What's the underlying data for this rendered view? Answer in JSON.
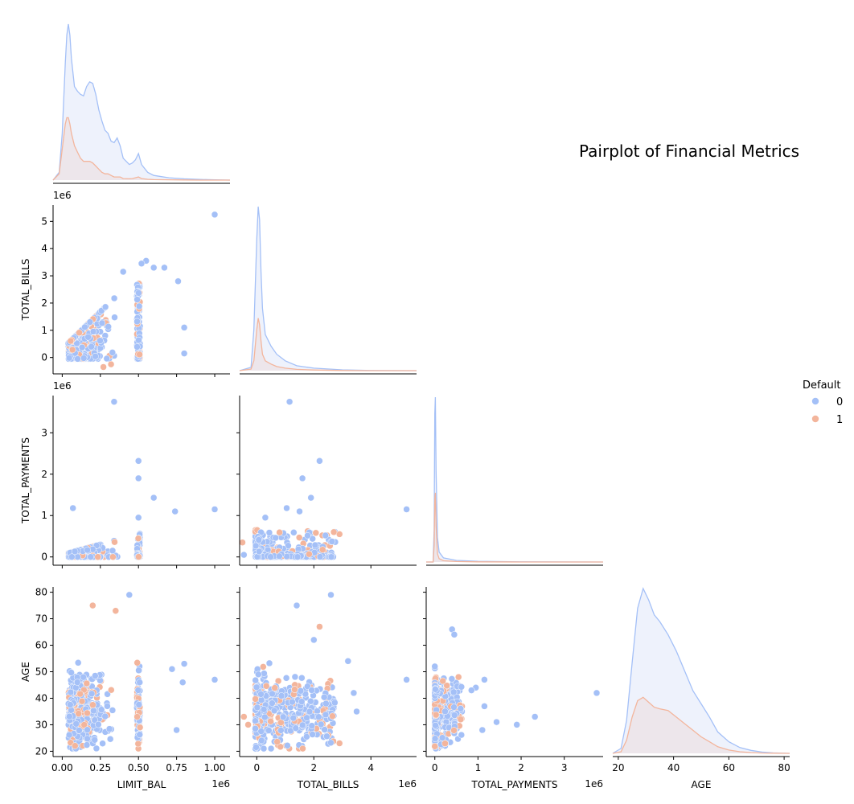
{
  "chart_data": {
    "type": "scatter",
    "title": "Pairplot of Financial Metrics",
    "variables": [
      "LIMIT_BAL",
      "TOTAL_BILLS",
      "TOTAL_PAYMENTS",
      "AGE"
    ],
    "offset_labels": {
      "LIMIT_BAL": "1e6",
      "TOTAL_BILLS": "1e6",
      "TOTAL_PAYMENTS": "1e6",
      "AGE": ""
    },
    "axes": {
      "LIMIT_BAL": {
        "lim": [
          -0.06,
          1.1
        ],
        "ticks": [
          0.0,
          0.25,
          0.5,
          0.75,
          1.0
        ],
        "tick_labels": [
          "0.00",
          "0.25",
          "0.50",
          "0.75",
          "1.00"
        ]
      },
      "TOTAL_BILLS": {
        "lim": [
          -0.6,
          5.6
        ],
        "ticks": [
          0,
          1,
          2,
          3,
          4,
          5
        ],
        "tick_labels": [
          "0",
          "1",
          "2",
          "3",
          "4",
          "5"
        ],
        "x_ticks": [
          0,
          2,
          4
        ],
        "x_tick_labels": [
          "0",
          "2",
          "4"
        ]
      },
      "TOTAL_PAYMENTS": {
        "lim": [
          -0.2,
          3.9
        ],
        "ticks": [
          0,
          1,
          2,
          3
        ],
        "tick_labels": [
          "0",
          "1",
          "2",
          "3"
        ]
      },
      "AGE": {
        "lim": [
          18,
          82
        ],
        "ticks": [
          20,
          30,
          40,
          50,
          60,
          70,
          80
        ],
        "tick_labels": [
          "20",
          "30",
          "40",
          "50",
          "60",
          "70",
          "80"
        ],
        "x_ticks": [
          20,
          40,
          60,
          80
        ],
        "x_tick_labels": [
          "20",
          "40",
          "60",
          "80"
        ]
      }
    },
    "legend": {
      "title": "Default",
      "placement": "right",
      "entries": [
        {
          "label": "0",
          "color": "#a4c0f7"
        },
        {
          "label": "1",
          "color": "#f3b59c"
        }
      ]
    },
    "colors": {
      "0": "#a4c0f7",
      "1": "#f3b59c",
      "kde_fill_0": "#e8eefb",
      "kde_fill_1": "#ece2e6",
      "kde_line_0": "#a4c0f7",
      "kde_line_1": "#f3b59c"
    },
    "diag_kde": {
      "LIMIT_BAL": {
        "x": [
          -0.06,
          -0.02,
          0.0,
          0.02,
          0.03,
          0.04,
          0.05,
          0.06,
          0.08,
          0.1,
          0.12,
          0.14,
          0.16,
          0.18,
          0.2,
          0.22,
          0.24,
          0.26,
          0.28,
          0.3,
          0.32,
          0.34,
          0.36,
          0.38,
          0.4,
          0.44,
          0.46,
          0.48,
          0.5,
          0.52,
          0.56,
          0.6,
          0.7,
          0.8,
          0.9,
          1.0,
          1.1
        ],
        "y0": [
          0.0,
          0.05,
          0.3,
          0.75,
          0.93,
          1.0,
          0.93,
          0.78,
          0.6,
          0.57,
          0.55,
          0.54,
          0.6,
          0.63,
          0.62,
          0.55,
          0.45,
          0.38,
          0.32,
          0.3,
          0.25,
          0.24,
          0.27,
          0.22,
          0.14,
          0.1,
          0.11,
          0.13,
          0.17,
          0.1,
          0.05,
          0.03,
          0.015,
          0.008,
          0.004,
          0.002,
          0.0
        ],
        "y1": [
          0.0,
          0.04,
          0.2,
          0.36,
          0.4,
          0.4,
          0.36,
          0.3,
          0.22,
          0.18,
          0.14,
          0.12,
          0.12,
          0.12,
          0.11,
          0.09,
          0.07,
          0.05,
          0.04,
          0.04,
          0.03,
          0.02,
          0.02,
          0.02,
          0.01,
          0.008,
          0.01,
          0.015,
          0.02,
          0.01,
          0.005,
          0.003,
          0.002,
          0.001,
          0.0,
          0.0,
          0.0
        ]
      },
      "TOTAL_BILLS": {
        "x": [
          -0.6,
          -0.2,
          -0.1,
          0.0,
          0.05,
          0.1,
          0.15,
          0.2,
          0.3,
          0.5,
          0.7,
          1.0,
          1.4,
          2.0,
          3.0,
          4.0,
          5.6
        ],
        "y0": [
          0.0,
          0.02,
          0.25,
          0.8,
          1.0,
          0.92,
          0.6,
          0.38,
          0.22,
          0.15,
          0.1,
          0.06,
          0.03,
          0.015,
          0.005,
          0.001,
          0.0
        ],
        "y1": [
          0.0,
          0.01,
          0.06,
          0.25,
          0.32,
          0.28,
          0.18,
          0.1,
          0.06,
          0.04,
          0.025,
          0.015,
          0.008,
          0.004,
          0.001,
          0.0,
          0.0
        ]
      },
      "TOTAL_PAYMENTS": {
        "x": [
          -0.2,
          -0.04,
          -0.015,
          0.0,
          0.012,
          0.03,
          0.06,
          0.1,
          0.2,
          0.5,
          1.0,
          2.0,
          3.9
        ],
        "y0": [
          0.0,
          0.0,
          0.2,
          0.9,
          1.0,
          0.55,
          0.15,
          0.06,
          0.025,
          0.01,
          0.004,
          0.001,
          0.0
        ],
        "y1": [
          0.0,
          0.0,
          0.1,
          0.38,
          0.42,
          0.22,
          0.05,
          0.02,
          0.008,
          0.003,
          0.001,
          0.0,
          0.0
        ]
      },
      "AGE": {
        "x": [
          18,
          21,
          23,
          25,
          27,
          29,
          31,
          33,
          35,
          38,
          41,
          44,
          47,
          50,
          53,
          56,
          60,
          64,
          68,
          72,
          76,
          82
        ],
        "y0": [
          0.0,
          0.03,
          0.2,
          0.55,
          0.88,
          1.0,
          0.93,
          0.84,
          0.8,
          0.72,
          0.62,
          0.5,
          0.38,
          0.3,
          0.22,
          0.13,
          0.07,
          0.035,
          0.018,
          0.008,
          0.003,
          0.0
        ],
        "y1": [
          0.0,
          0.01,
          0.08,
          0.22,
          0.32,
          0.34,
          0.31,
          0.28,
          0.27,
          0.26,
          0.22,
          0.18,
          0.14,
          0.1,
          0.07,
          0.04,
          0.02,
          0.01,
          0.005,
          0.002,
          0.001,
          0.0
        ]
      }
    },
    "outliers": {
      "TOTAL_BILLS_vs_LIMIT_BAL": [
        [
          1.0,
          5.25,
          0
        ],
        [
          0.55,
          3.55,
          0
        ],
        [
          0.52,
          3.45,
          0
        ],
        [
          0.6,
          3.3,
          0
        ],
        [
          0.67,
          3.3,
          0
        ],
        [
          0.4,
          3.15,
          0
        ],
        [
          0.76,
          2.8,
          0
        ],
        [
          0.8,
          1.1,
          0
        ],
        [
          0.8,
          0.15,
          0
        ],
        [
          0.27,
          -0.35,
          1
        ],
        [
          0.32,
          -0.25,
          1
        ]
      ],
      "TOTAL_PAYMENTS_vs_LIMIT_BAL": [
        [
          0.34,
          3.75,
          0
        ],
        [
          0.5,
          2.32,
          0
        ],
        [
          0.5,
          1.9,
          0
        ],
        [
          0.6,
          1.43,
          0
        ],
        [
          0.07,
          1.18,
          0
        ],
        [
          0.74,
          1.1,
          0
        ],
        [
          1.0,
          1.15,
          0
        ],
        [
          0.5,
          0.95,
          0
        ]
      ],
      "TOTAL_PAYMENTS_vs_TOTAL_BILLS": [
        [
          1.15,
          3.75,
          0
        ],
        [
          2.2,
          2.32,
          0
        ],
        [
          1.6,
          1.9,
          0
        ],
        [
          1.9,
          1.43,
          0
        ],
        [
          1.05,
          1.18,
          0
        ],
        [
          1.5,
          1.1,
          0
        ],
        [
          5.25,
          1.15,
          0
        ],
        [
          0.3,
          0.95,
          0
        ],
        [
          2.9,
          0.55,
          1
        ],
        [
          2.7,
          0.6,
          1
        ],
        [
          -0.5,
          0.35,
          1
        ],
        [
          -0.45,
          0.05,
          0
        ]
      ],
      "AGE_vs_LIMIT_BAL": [
        [
          0.44,
          79,
          0
        ],
        [
          1.0,
          47,
          0
        ],
        [
          0.8,
          53,
          0
        ],
        [
          0.79,
          46,
          0
        ],
        [
          0.75,
          28,
          0
        ],
        [
          0.72,
          51,
          0
        ],
        [
          0.2,
          75,
          1
        ],
        [
          0.35,
          73,
          1
        ]
      ],
      "AGE_vs_TOTAL_BILLS": [
        [
          2.6,
          79,
          0
        ],
        [
          5.25,
          47,
          0
        ],
        [
          3.5,
          35,
          0
        ],
        [
          3.4,
          42,
          0
        ],
        [
          3.2,
          54,
          0
        ],
        [
          2.9,
          23,
          1
        ],
        [
          2.0,
          62,
          0
        ],
        [
          1.4,
          75,
          0
        ],
        [
          -0.45,
          33,
          1
        ],
        [
          -0.3,
          30,
          1
        ],
        [
          2.2,
          67,
          1
        ]
      ],
      "AGE_vs_TOTAL_PAYMENTS": [
        [
          3.75,
          42,
          0
        ],
        [
          2.32,
          33,
          0
        ],
        [
          1.9,
          30,
          0
        ],
        [
          1.43,
          31,
          0
        ],
        [
          1.15,
          47,
          0
        ],
        [
          1.15,
          37,
          0
        ],
        [
          1.1,
          28,
          0
        ],
        [
          0.95,
          44,
          0
        ],
        [
          0.85,
          43,
          0
        ],
        [
          0.6,
          32,
          1
        ],
        [
          0.55,
          48,
          1
        ],
        [
          0.4,
          66,
          0
        ],
        [
          0.45,
          64,
          0
        ]
      ]
    }
  }
}
